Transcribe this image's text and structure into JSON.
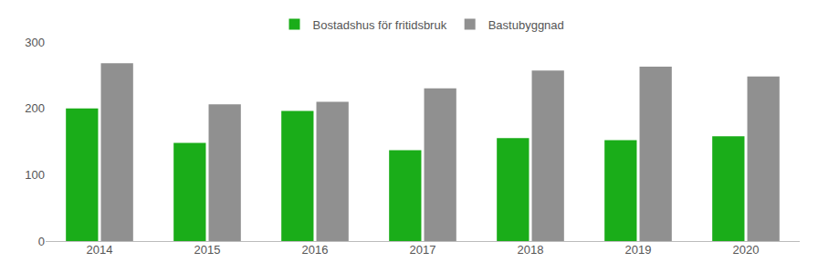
{
  "chart_data": {
    "type": "bar",
    "categories": [
      "2014",
      "2015",
      "2016",
      "2017",
      "2018",
      "2019",
      "2020"
    ],
    "series": [
      {
        "name": "Bostadshus för fritidsbruk",
        "color": "#1aad19",
        "values": [
          200,
          148,
          196,
          137,
          155,
          152,
          158
        ]
      },
      {
        "name": "Bastubyggnad",
        "color": "#909090",
        "values": [
          268,
          206,
          210,
          230,
          257,
          263,
          248
        ]
      }
    ],
    "ylim": [
      0,
      300
    ],
    "yticks": [
      0,
      100,
      200,
      300
    ],
    "grid": false,
    "legend": "top"
  }
}
